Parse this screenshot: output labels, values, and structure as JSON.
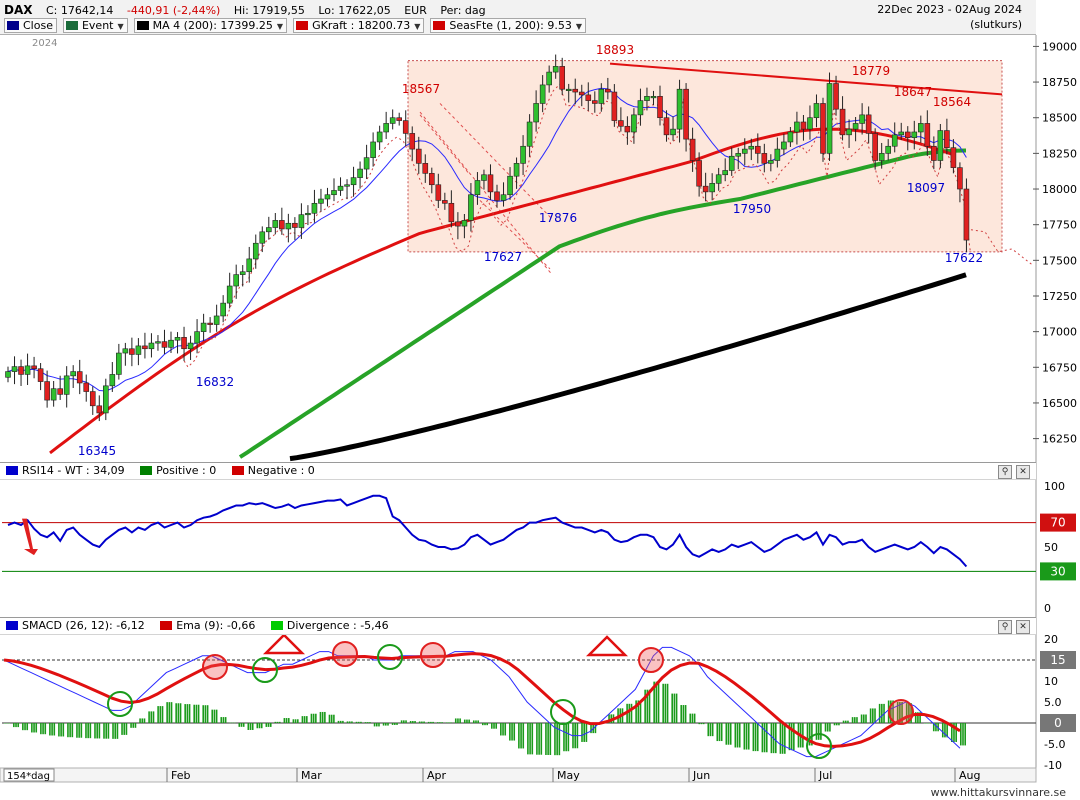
{
  "header": {
    "symbol": "DAX",
    "close": "C: 17642,14",
    "change": "-440,91 (-2,44%)",
    "high": "Hi: 17919,55",
    "low": "Lo: 17622,05",
    "currency": "EUR",
    "period": "Per: dag",
    "date_range": "22Dec 2023 - 02Aug 2024",
    "price_type": "(slutkurs)"
  },
  "legend": [
    {
      "label": "Close",
      "color": "#00008b"
    },
    {
      "label": "Event",
      "color": "#1a6b3a"
    },
    {
      "label": "MA 4 (200): 17399.25",
      "color": "#000000"
    },
    {
      "label": "GKraft : 18200.73",
      "color": "#d00000"
    },
    {
      "label": "SeasFte (1, 200): 9.53",
      "color": "#d00000"
    }
  ],
  "year_label": "2024",
  "rsi_panel": {
    "items": [
      {
        "label": "RSI14 - WT : 34,09",
        "color": "#0000cc"
      },
      {
        "label": "Positive : 0",
        "color": "#008000"
      },
      {
        "label": "Negative : 0",
        "color": "#d00000"
      }
    ]
  },
  "macd_panel": {
    "items": [
      {
        "label": "SMACD (26, 12): -6,12",
        "color": "#0000cc"
      },
      {
        "label": "Ema (9): -0,66",
        "color": "#d00000"
      },
      {
        "label": "Divergence : -5,46",
        "color": "#00cc00"
      }
    ]
  },
  "footer": "www.hittakursvinnare.se",
  "bottom_left": "154*dag",
  "chart_data": [
    {
      "type": "candlestick",
      "title": "DAX",
      "ylim": [
        16100,
        19080
      ],
      "y_ticks": [
        "19000",
        "18750",
        "18500",
        "18250",
        "18000",
        "17750",
        "17500",
        "17250",
        "17000",
        "16750",
        "16500",
        "16250"
      ],
      "x_ticks": [
        "Feb",
        "Mar",
        "Apr",
        "May",
        "Jun",
        "Jul",
        "Aug"
      ],
      "annotations": [
        {
          "text": "18893",
          "value": 18893,
          "color": "#d00000"
        },
        {
          "text": "18567",
          "value": 18567,
          "color": "#d00000"
        },
        {
          "text": "18779",
          "value": 18779,
          "color": "#d00000"
        },
        {
          "text": "18647",
          "value": 18647,
          "color": "#d00000"
        },
        {
          "text": "18564",
          "value": 18564,
          "color": "#d00000"
        },
        {
          "text": "17876",
          "value": 17876,
          "color": "#0000cc"
        },
        {
          "text": "17627",
          "value": 17627,
          "color": "#0000cc"
        },
        {
          "text": "17950",
          "value": 17950,
          "color": "#0000cc"
        },
        {
          "text": "18097",
          "value": 18097,
          "color": "#0000cc"
        },
        {
          "text": "17622",
          "value": 17622,
          "color": "#0000cc"
        },
        {
          "text": "16832",
          "value": 16832,
          "color": "#0000cc"
        },
        {
          "text": "16345",
          "value": 16345,
          "color": "#0000cc"
        }
      ],
      "close": [
        16720,
        16755,
        16700,
        16760,
        16740,
        16650,
        16520,
        16600,
        16560,
        16690,
        16720,
        16640,
        16580,
        16480,
        16430,
        16620,
        16700,
        16850,
        16880,
        16840,
        16900,
        16880,
        16920,
        16930,
        16890,
        16940,
        16960,
        16880,
        16920,
        17000,
        17060,
        17050,
        17110,
        17200,
        17320,
        17400,
        17420,
        17510,
        17620,
        17700,
        17730,
        17780,
        17720,
        17760,
        17730,
        17820,
        17830,
        17900,
        17930,
        17960,
        17990,
        18020,
        18030,
        18080,
        18140,
        18220,
        18330,
        18400,
        18460,
        18500,
        18480,
        18390,
        18280,
        18180,
        18110,
        18030,
        17920,
        17900,
        17770,
        17740,
        17780,
        17960,
        18060,
        18100,
        17980,
        17920,
        17960,
        18090,
        18180,
        18300,
        18470,
        18600,
        18730,
        18820,
        18860,
        18700,
        18700,
        18680,
        18660,
        18620,
        18600,
        18700,
        18680,
        18480,
        18440,
        18400,
        18520,
        18620,
        18650,
        18650,
        18500,
        18380,
        18420,
        18700,
        18350,
        18200,
        18020,
        17980,
        18040,
        18100,
        18130,
        18230,
        18250,
        18280,
        18300,
        18250,
        18180,
        18200,
        18280,
        18330,
        18400,
        18470,
        18420,
        18500,
        18600,
        18250,
        18740,
        18560,
        18380,
        18420,
        18460,
        18520,
        18390,
        18200,
        18250,
        18300,
        18380,
        18400,
        18360,
        18400,
        18460,
        18300,
        18200,
        18410,
        18290,
        18150,
        18000,
        17642
      ],
      "ma200": [
        15400,
        15408,
        15416,
        15424,
        15432,
        15440,
        15448,
        15456,
        15464,
        15472,
        15480,
        15488,
        15496,
        15504,
        15512,
        15520,
        15528,
        15536,
        15544,
        15552,
        15560,
        15568,
        15576,
        15584,
        15592,
        15600,
        15608,
        15616,
        15624,
        15632,
        15640,
        15648,
        15656,
        15664,
        15672,
        15680,
        15688,
        15696,
        15704,
        15712,
        15720,
        15728,
        15736,
        15744,
        15752,
        15760,
        15768,
        15776,
        15784,
        15792,
        15800,
        15808,
        15816,
        15824,
        15832,
        15840,
        15848,
        15856,
        15864,
        15872,
        15880,
        15888,
        15896,
        15904,
        15912,
        15920,
        15928,
        15936,
        15944,
        15952,
        15960,
        15968,
        15976,
        15984,
        15992,
        16000,
        16008,
        16016,
        16024,
        16032,
        16040,
        16050,
        16060,
        16070,
        16080,
        16090,
        16100,
        16110,
        16120,
        16130,
        16140,
        16150,
        16160,
        16170,
        16180,
        16190,
        16200,
        16212,
        16224,
        16236,
        16248,
        16260,
        16272,
        16284,
        16296,
        16308,
        16320,
        16332,
        16344,
        16356,
        16368,
        16380,
        16392,
        16404,
        16416,
        16428,
        16440,
        16455,
        16470,
        16485,
        16500,
        16515,
        16530,
        16545,
        16560,
        16575,
        16590,
        16605,
        16620,
        16635,
        16650,
        16665,
        16680,
        16695,
        16710,
        16725,
        16740,
        16760,
        16780,
        16800,
        16820,
        16840,
        16860,
        16880,
        16900,
        16920,
        16940,
        16960,
        16980,
        17000,
        17020,
        17040,
        17060,
        17080,
        17100,
        17120,
        17140,
        17160,
        17180,
        17200,
        17220,
        17240,
        17260,
        17280,
        17300,
        17320,
        17340,
        17360,
        17380,
        17399
      ],
      "rsi": [
        68,
        70,
        68,
        72,
        65,
        60,
        58,
        62,
        55,
        64,
        66,
        60,
        56,
        52,
        50,
        56,
        60,
        64,
        66,
        62,
        66,
        64,
        68,
        70,
        66,
        68,
        70,
        66,
        68,
        72,
        74,
        75,
        77,
        80,
        82,
        84,
        84,
        86,
        85,
        86,
        84,
        82,
        83,
        85,
        82,
        84,
        85,
        86,
        87,
        88,
        88,
        89,
        84,
        86,
        88,
        90,
        92,
        92,
        90,
        75,
        72,
        66,
        60,
        56,
        55,
        52,
        50,
        50,
        48,
        49,
        52,
        58,
        60,
        56,
        52,
        54,
        56,
        60,
        64,
        66,
        70,
        70,
        72,
        73,
        74,
        70,
        68,
        66,
        66,
        64,
        62,
        64,
        62,
        56,
        54,
        55,
        58,
        60,
        60,
        58,
        50,
        48,
        52,
        60,
        50,
        44,
        42,
        45,
        48,
        46,
        48,
        52,
        50,
        52,
        54,
        50,
        46,
        48,
        52,
        56,
        58,
        60,
        56,
        58,
        62,
        52,
        60,
        58,
        52,
        54,
        54,
        56,
        50,
        46,
        48,
        50,
        52,
        50,
        48,
        50,
        54,
        50,
        45,
        50,
        48,
        44,
        40,
        34
      ],
      "macd": [
        15,
        14,
        13,
        12,
        11,
        10,
        9,
        8,
        7,
        6,
        5,
        4,
        3,
        3,
        4,
        6,
        8,
        10,
        12,
        13,
        14,
        15,
        16,
        16,
        15,
        14,
        13,
        12,
        12,
        12,
        13,
        14,
        14,
        15,
        16,
        17,
        17,
        16,
        16,
        16,
        16,
        15,
        15,
        15,
        16,
        16,
        16,
        16,
        16,
        16,
        17,
        17,
        17,
        16,
        15,
        13,
        11,
        8,
        5,
        3,
        1,
        -1,
        -2,
        -3,
        -3,
        -2,
        0,
        2,
        4,
        6,
        8,
        12,
        16,
        18,
        18,
        17,
        16,
        14,
        11,
        9,
        7,
        5,
        3,
        1,
        -1,
        -3,
        -5,
        -6,
        -7,
        -8,
        -8,
        -7,
        -6,
        -5,
        -4,
        -3,
        -1,
        1,
        3,
        4,
        5,
        4,
        2,
        0,
        -2,
        -4,
        -6
      ]
    }
  ]
}
